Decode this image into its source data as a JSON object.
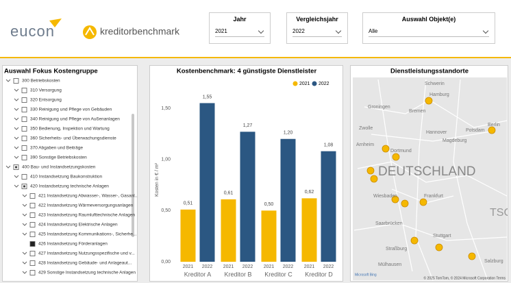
{
  "header": {
    "logo_left": "eucon",
    "logo_right": "kreditorbenchmark"
  },
  "filters": [
    {
      "label": "Jahr",
      "value": "2021"
    },
    {
      "label": "Vergleichsjahr",
      "value": "2022"
    },
    {
      "label": "Auswahl Objekt(e)",
      "value": "Alle"
    }
  ],
  "tree": {
    "title": "Auswahl Fokus Kostengruppe",
    "items": [
      {
        "label": "300 Betriebskosten",
        "level": 0,
        "state": "unchecked",
        "has_children": true
      },
      {
        "label": "310 Versorgung",
        "level": 1,
        "state": "unchecked",
        "has_children": true
      },
      {
        "label": "320 Entsorgung",
        "level": 1,
        "state": "unchecked",
        "has_children": true
      },
      {
        "label": "330 Reinigung und Pflege von Gebäuden",
        "level": 1,
        "state": "unchecked",
        "has_children": true
      },
      {
        "label": "340 Reinigung und Pflege von Außenanlagen",
        "level": 1,
        "state": "unchecked",
        "has_children": true
      },
      {
        "label": "350 Bedienung, Inspektion und Wartung",
        "level": 1,
        "state": "unchecked",
        "has_children": true
      },
      {
        "label": "360 Sicherheits- und Überwachungsdienste",
        "level": 1,
        "state": "unchecked",
        "has_children": true
      },
      {
        "label": "370 Abgaben und Beiträge",
        "level": 1,
        "state": "unchecked",
        "has_children": true
      },
      {
        "label": "390 Sonstige Betriebskosten",
        "level": 1,
        "state": "unchecked",
        "has_children": true
      },
      {
        "label": "400 Bau- und Instandsetzungskosten",
        "level": 0,
        "state": "partial",
        "has_children": true
      },
      {
        "label": "410 Instandsetzung Baukonstruktion",
        "level": 1,
        "state": "unchecked",
        "has_children": true
      },
      {
        "label": "420 Instandsetzung technische Anlagen",
        "level": 1,
        "state": "partial",
        "has_children": true
      },
      {
        "label": "421 Instandsetzung Abwasser-, Wasser-, Gasanl...",
        "level": 2,
        "state": "unchecked",
        "has_children": true
      },
      {
        "label": "422 Instandsetzung Wärmeversorgungsanlagen",
        "level": 2,
        "state": "unchecked",
        "has_children": true
      },
      {
        "label": "423 Instandsetzung Raumlufttechnische Anlagen",
        "level": 2,
        "state": "unchecked",
        "has_children": true
      },
      {
        "label": "424 Instandsetzung Elektrische Anlagen",
        "level": 2,
        "state": "unchecked",
        "has_children": true
      },
      {
        "label": "425 Instandsetzung Kommunikations-, Sicherhe...",
        "level": 2,
        "state": "unchecked",
        "has_children": true
      },
      {
        "label": "426 Instandsetzung Förderanlagen",
        "level": 2,
        "state": "checked",
        "has_children": false
      },
      {
        "label": "427 Instandsetzung Nutzungsspezifische und v...",
        "level": 2,
        "state": "unchecked",
        "has_children": true
      },
      {
        "label": "428 Instandsetzung Gebäude- und Anlageaut...",
        "level": 2,
        "state": "unchecked",
        "has_children": true
      },
      {
        "label": "429 Sonstige Instandsetzung technische Anlagen",
        "level": 2,
        "state": "unchecked",
        "has_children": true
      }
    ]
  },
  "chart_data": {
    "type": "bar",
    "title": "Kostenbenchmark: 4 günstigste Dienstleister",
    "y_label": "Kosten in € / m²",
    "categories": [
      "Kreditor A",
      "Kreditor B",
      "Kreditor C",
      "Kreditor D"
    ],
    "series": [
      {
        "name": "2021",
        "color": "#f5b800",
        "values": [
          0.51,
          0.61,
          0.5,
          0.62
        ],
        "value_labels": [
          "0,51",
          "0,61",
          "0,50",
          "0,62"
        ]
      },
      {
        "name": "2022",
        "color": "#2b5782",
        "values": [
          1.55,
          1.27,
          1.2,
          1.08
        ],
        "value_labels": [
          "1,55",
          "1,27",
          "1,20",
          "1,08"
        ]
      }
    ],
    "ylim": [
      0,
      1.6
    ],
    "yticks": [
      {
        "value": 0,
        "label": "0,00"
      },
      {
        "value": 0.5,
        "label": "0,50"
      },
      {
        "value": 1,
        "label": "1,00"
      },
      {
        "value": 1.5,
        "label": "1,50"
      }
    ],
    "grid": false,
    "legend": "top-right"
  },
  "map": {
    "title": "Dienstleistungsstandorte",
    "labels": [
      "Schwerin",
      "Hamburg",
      "Bremen",
      "Groningen",
      "Zwolle",
      "Hannover",
      "Potsdam",
      "Berlin",
      "Magdeburg",
      "Arnheim",
      "Dortmund",
      "DEUTSCHLAND",
      "Wiesbaden",
      "Frankfurt",
      "Saarbrücken",
      "Stuttgart",
      "Straßburg",
      "Mülhausen",
      "Salzburg",
      "TSC"
    ],
    "provider": "Microsoft Bing",
    "attribution": "© 2025 TomTom, © 2024 Microsoft Corporation Terms"
  }
}
